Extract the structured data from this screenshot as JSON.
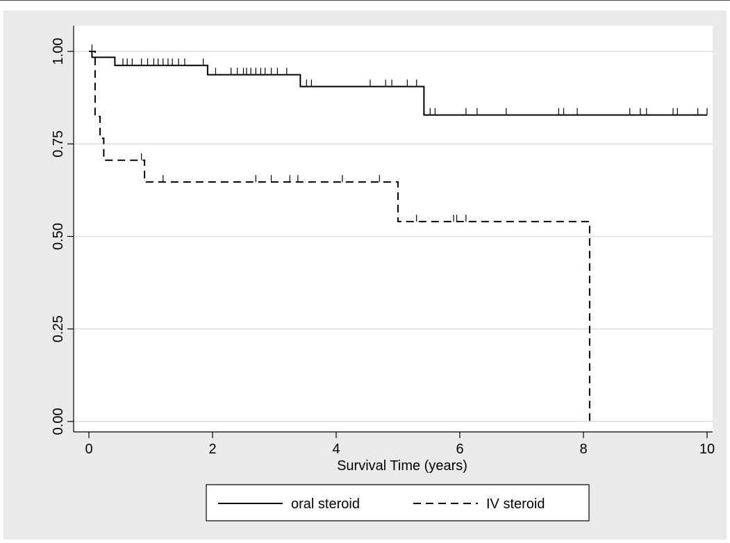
{
  "chart_data": {
    "type": "line",
    "title": "",
    "xlabel": "Survival Time (years)",
    "ylabel": "",
    "xlim": [
      0,
      10
    ],
    "ylim": [
      0,
      1
    ],
    "x_ticks": [
      0,
      2,
      4,
      6,
      8,
      10
    ],
    "x_tick_labels": [
      "0",
      "2",
      "4",
      "6",
      "8",
      "10"
    ],
    "y_ticks": [
      0,
      0.25,
      0.5,
      0.75,
      1
    ],
    "y_tick_labels": [
      "0.00",
      "0.25",
      "0.50",
      "0.75",
      "1.00"
    ],
    "grid": "horizontal",
    "legend_position": "bottom",
    "series": [
      {
        "name": "oral steroid",
        "style": "solid",
        "color": "#000000",
        "steps": [
          [
            0,
            1.0
          ],
          [
            0.05,
            0.984
          ],
          [
            0.42,
            0.962
          ],
          [
            1.92,
            0.937
          ],
          [
            3.42,
            0.905
          ],
          [
            5.42,
            0.828
          ],
          [
            10.0,
            0.828
          ]
        ],
        "censored": [
          0.42,
          0.55,
          0.62,
          0.7,
          0.85,
          0.95,
          1.05,
          1.12,
          1.2,
          1.28,
          1.35,
          1.45,
          1.55,
          1.85,
          2.05,
          2.3,
          2.4,
          2.5,
          2.55,
          2.62,
          2.7,
          2.78,
          2.85,
          2.95,
          3.05,
          3.2,
          3.52,
          3.6,
          4.55,
          4.8,
          4.9,
          5.15,
          5.3,
          5.52,
          5.6,
          6.1,
          6.28,
          6.75,
          7.6,
          7.68,
          7.9,
          8.75,
          8.92,
          9.02,
          9.45,
          9.52,
          9.85,
          10.0
        ]
      },
      {
        "name": "IV steroid",
        "style": "dashed",
        "color": "#000000",
        "steps": [
          [
            0,
            1.0
          ],
          [
            0.1,
            0.824
          ],
          [
            0.18,
            0.765
          ],
          [
            0.24,
            0.706
          ],
          [
            0.9,
            0.647
          ],
          [
            5.0,
            0.54
          ],
          [
            8.1,
            0.54
          ],
          [
            8.1,
            0.0
          ]
        ],
        "censored": [
          0.05,
          0.85,
          1.2,
          2.7,
          2.95,
          3.25,
          3.38,
          4.1,
          4.7,
          5.3,
          5.9,
          5.95,
          6.1
        ]
      }
    ]
  }
}
